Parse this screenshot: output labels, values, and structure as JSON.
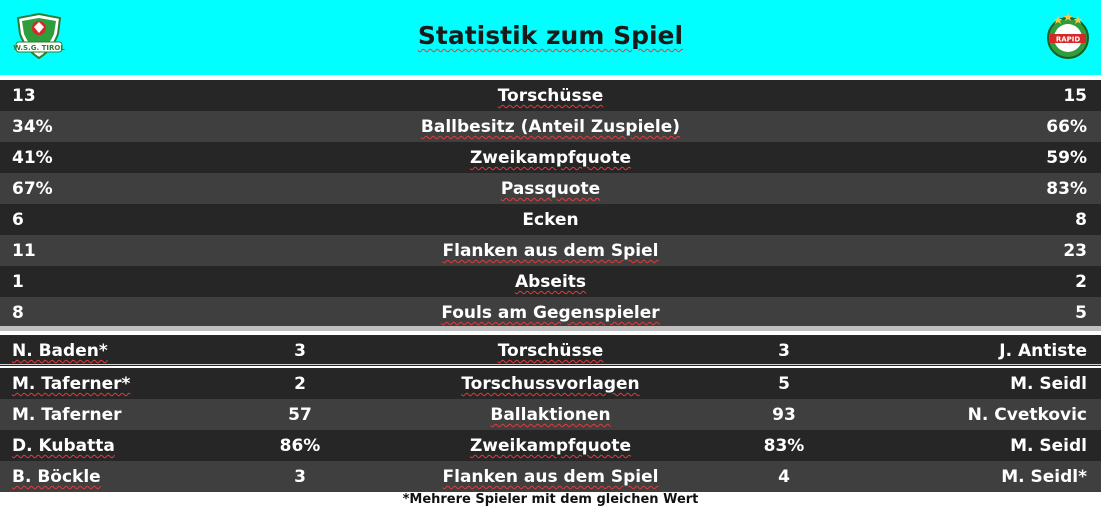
{
  "header": {
    "title": "Statistik zum Spiel",
    "home_logo_text": "W.S.G. TIROL",
    "away_logo_text": "RAPID",
    "bg_color": "#00ffff"
  },
  "team_stats": [
    {
      "home": "13",
      "label": "Torschüsse",
      "away": "15"
    },
    {
      "home": "34%",
      "label": "Ballbesitz (Anteil Zuspiele)",
      "away": "66%"
    },
    {
      "home": "41%",
      "label": "Zweikampfquote",
      "away": "59%"
    },
    {
      "home": "67%",
      "label": "Passquote",
      "away": "83%"
    },
    {
      "home": "6",
      "label": "Ecken",
      "away": "8"
    },
    {
      "home": "11",
      "label": "Flanken aus dem Spiel",
      "away": "23"
    },
    {
      "home": "1",
      "label": "Abseits",
      "away": "2"
    },
    {
      "home": "8",
      "label": "Fouls am Gegenspieler",
      "away": "5"
    }
  ],
  "player_stats": [
    {
      "home_player": "N. Baden*",
      "home_value": "3",
      "label": "Torschüsse",
      "away_value": "3",
      "away_player": "J. Antiste"
    },
    {
      "home_player": "M. Taferner*",
      "home_value": "2",
      "label": "Torschussvorlagen",
      "away_value": "5",
      "away_player": "M. Seidl"
    },
    {
      "home_player": "M. Taferner",
      "home_value": "57",
      "label": "Ballaktionen",
      "away_value": "93",
      "away_player": "N. Cvetkovic"
    },
    {
      "home_player": "D. Kubatta",
      "home_value": "86%",
      "label": "Zweikampfquote",
      "away_value": "83%",
      "away_player": "M. Seidl"
    },
    {
      "home_player": "B. Böckle",
      "home_value": "3",
      "label": "Flanken aus dem Spiel",
      "away_value": "4",
      "away_player": "M. Seidl*"
    }
  ],
  "footnote": "*Mehrere Spieler mit dem gleichen Wert",
  "colors": {
    "dark_row": "#262626",
    "mid_row": "#3f3f3f",
    "separator": "#bfbfbf",
    "spellcheck_squiggle": "#e23b3b"
  }
}
